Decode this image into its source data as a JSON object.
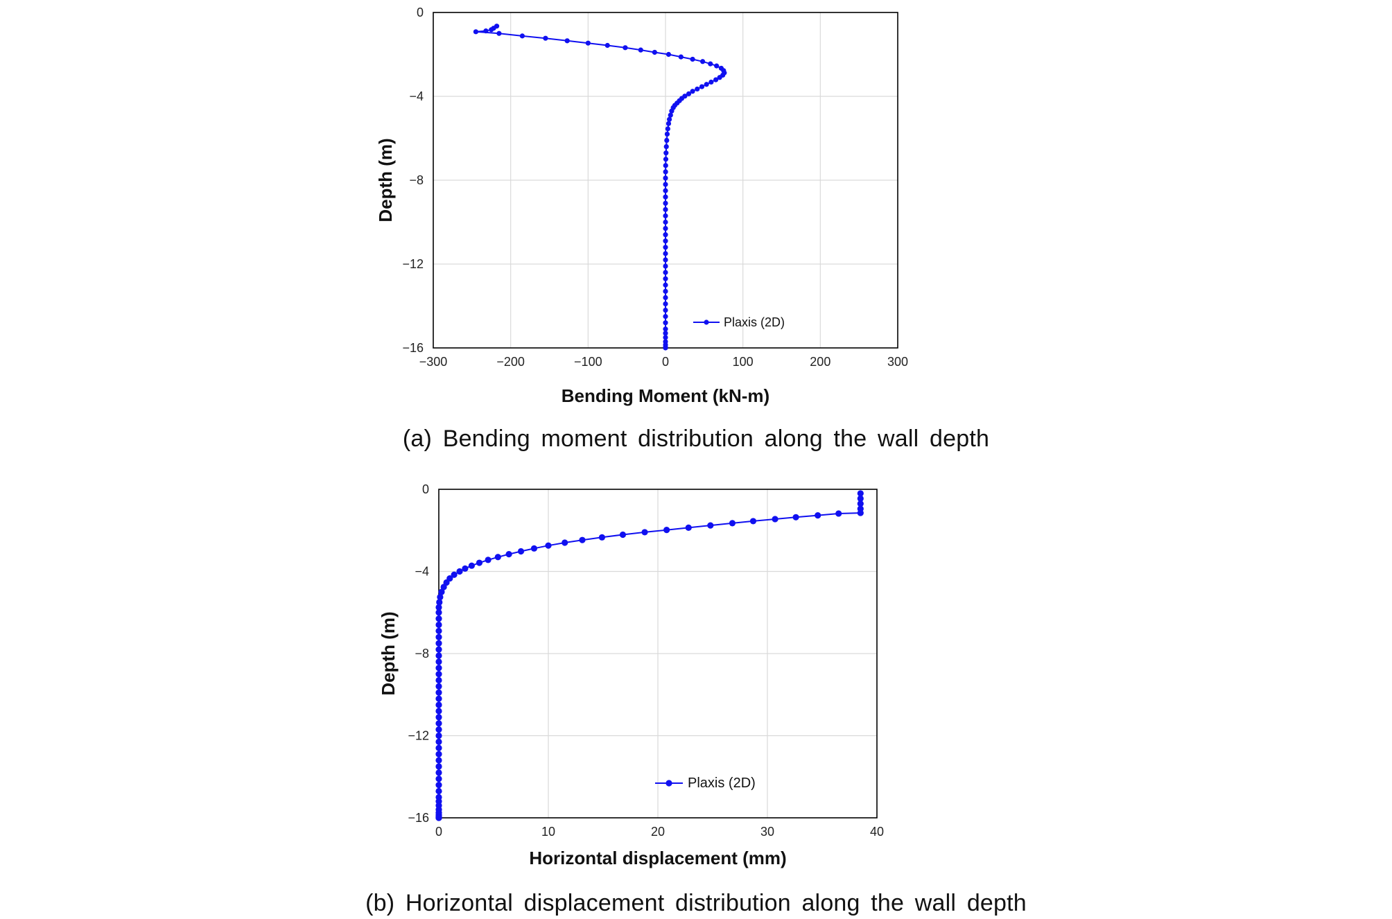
{
  "chart_data": [
    {
      "type": "line",
      "caption": "(a) Bending moment distribution along the wall depth",
      "xlabel": "Bending Moment (kN-m)",
      "ylabel": "Depth (m)",
      "xlim": [
        -300,
        300
      ],
      "ylim": [
        -16,
        0
      ],
      "xticks": [
        "−300",
        "−200",
        "−100",
        "0",
        "100",
        "200",
        "300"
      ],
      "yticks": [
        "0",
        "−4",
        "−8",
        "−12",
        "−16"
      ],
      "grid": true,
      "legend_position": "bottom-right",
      "series": [
        {
          "name": "Plaxis (2D)",
          "color": "#1010f0",
          "x": [
            -218,
            -222,
            -225,
            -232,
            -245,
            -215,
            -185,
            -155,
            -127,
            -100,
            -75,
            -52,
            -32,
            -14,
            4,
            20,
            35,
            48,
            58,
            66,
            72,
            75,
            76,
            74,
            70,
            65,
            59,
            53,
            47,
            41,
            35,
            30,
            25,
            21,
            18,
            15,
            12,
            10,
            8,
            6.5,
            5,
            4,
            3,
            2.2,
            1.6,
            1.1,
            0.7,
            0.4,
            0.2,
            0.1,
            0,
            0,
            0,
            0,
            0,
            0,
            0,
            0,
            0,
            0,
            0,
            0,
            0,
            0,
            0,
            0,
            0,
            0,
            0,
            0,
            0,
            0,
            0,
            0,
            0,
            0,
            0,
            0,
            0,
            0,
            0
          ],
          "y": [
            -0.65,
            -0.75,
            -0.82,
            -0.88,
            -0.92,
            -1.0,
            -1.12,
            -1.23,
            -1.35,
            -1.46,
            -1.57,
            -1.68,
            -1.79,
            -1.9,
            -2.0,
            -2.12,
            -2.23,
            -2.34,
            -2.45,
            -2.55,
            -2.66,
            -2.77,
            -2.88,
            -2.99,
            -3.1,
            -3.21,
            -3.32,
            -3.43,
            -3.54,
            -3.65,
            -3.76,
            -3.88,
            -3.99,
            -4.1,
            -4.21,
            -4.32,
            -4.43,
            -4.54,
            -4.7,
            -4.9,
            -5.1,
            -5.3,
            -5.55,
            -5.8,
            -6.1,
            -6.4,
            -6.7,
            -7.0,
            -7.3,
            -7.6,
            -7.9,
            -8.2,
            -8.5,
            -8.8,
            -9.1,
            -9.4,
            -9.7,
            -10.0,
            -10.3,
            -10.6,
            -10.9,
            -11.2,
            -11.5,
            -11.8,
            -12.1,
            -12.4,
            -12.7,
            -13.0,
            -13.3,
            -13.6,
            -13.9,
            -14.2,
            -14.5,
            -14.8,
            -15.1,
            -15.3,
            -15.5,
            -15.7,
            -15.85,
            -15.95,
            -16.0
          ]
        }
      ]
    },
    {
      "type": "line",
      "caption": "(b) Horizontal displacement distribution along the wall depth",
      "xlabel": "Horizontal displacement (mm)",
      "ylabel": "Depth (m)",
      "xlim": [
        0,
        40
      ],
      "ylim": [
        -16,
        0
      ],
      "xticks": [
        "0",
        "10",
        "20",
        "30",
        "40"
      ],
      "yticks": [
        "0",
        "−4",
        "−8",
        "−12",
        "−16"
      ],
      "grid": true,
      "legend_position": "bottom-right",
      "series": [
        {
          "name": "Plaxis (2D)",
          "color": "#1010f0",
          "x": [
            38.5,
            38.5,
            38.5,
            38.5,
            38.5,
            36.5,
            34.6,
            32.6,
            30.7,
            28.7,
            26.8,
            24.8,
            22.8,
            20.8,
            18.8,
            16.8,
            14.9,
            13.1,
            11.5,
            10.0,
            8.7,
            7.5,
            6.4,
            5.4,
            4.5,
            3.7,
            3.0,
            2.4,
            1.9,
            1.4,
            1.0,
            0.7,
            0.45,
            0.25,
            0.12,
            0.05,
            0,
            0,
            0,
            0,
            0,
            0,
            0,
            0,
            0,
            0,
            0,
            0,
            0,
            0,
            0,
            0,
            0,
            0,
            0,
            0,
            0,
            0,
            0,
            0,
            0,
            0,
            0,
            0,
            0,
            0,
            0,
            0,
            0,
            0,
            0,
            0,
            0,
            0,
            0,
            0,
            0,
            0,
            0
          ],
          "y": [
            -0.2,
            -0.45,
            -0.7,
            -0.95,
            -1.15,
            -1.18,
            -1.27,
            -1.36,
            -1.45,
            -1.55,
            -1.65,
            -1.76,
            -1.87,
            -1.98,
            -2.09,
            -2.21,
            -2.34,
            -2.47,
            -2.6,
            -2.74,
            -2.88,
            -3.02,
            -3.16,
            -3.3,
            -3.44,
            -3.58,
            -3.72,
            -3.86,
            -4.0,
            -4.16,
            -4.34,
            -4.54,
            -4.76,
            -5.0,
            -5.25,
            -5.5,
            -5.75,
            -6.0,
            -6.3,
            -6.6,
            -6.9,
            -7.2,
            -7.5,
            -7.8,
            -8.1,
            -8.4,
            -8.7,
            -9.0,
            -9.3,
            -9.6,
            -9.9,
            -10.2,
            -10.5,
            -10.8,
            -11.1,
            -11.4,
            -11.7,
            -12.0,
            -12.3,
            -12.6,
            -12.9,
            -13.2,
            -13.5,
            -13.8,
            -14.1,
            -14.4,
            -14.7,
            -15.0,
            -15.2,
            -15.4,
            -15.6,
            -15.75,
            -15.85,
            -15.92,
            -15.96,
            -15.98,
            -15.99,
            -16.0,
            -16.0
          ]
        }
      ]
    }
  ]
}
